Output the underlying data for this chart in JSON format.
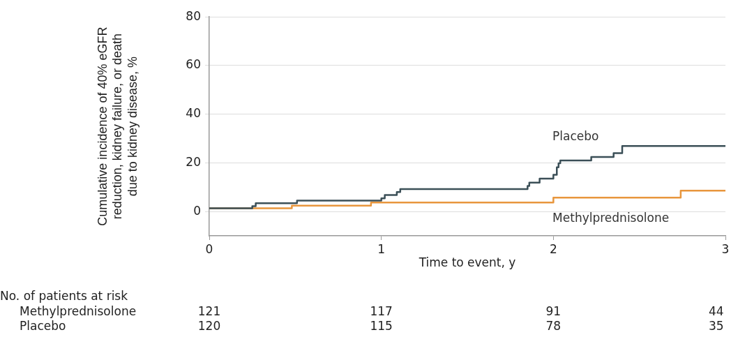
{
  "chart_data": {
    "type": "step",
    "ylabel": "Cumulative incidence of 40% eGFR\nreduction, kidney failure, or death\ndue to kidney disease, %",
    "xlabel": "Time to event, y",
    "xlim": [
      0,
      3
    ],
    "xticks": [
      0,
      1,
      2,
      3
    ],
    "ylim": [
      -10,
      80
    ],
    "yticks": [
      0,
      20,
      40,
      60,
      80
    ],
    "grid": "y",
    "legend": false,
    "marker": "none",
    "line_style": "solid",
    "series": [
      {
        "name": "Placebo",
        "color": "#3b4f57",
        "x": [
          0,
          0.25,
          0.27,
          0.51,
          1.0,
          1.02,
          1.09,
          1.11,
          1.85,
          1.86,
          1.92,
          2.0,
          2.02,
          2.03,
          2.04,
          2.22,
          2.35,
          2.4,
          3
        ],
        "values": [
          1.3,
          2.2,
          3.4,
          4.5,
          5.4,
          6.8,
          8.0,
          9.2,
          10.5,
          11.9,
          13.5,
          15.1,
          18.2,
          19.8,
          21,
          22.4,
          24,
          26.9,
          26.9
        ]
      },
      {
        "name": "Methylprednisolone",
        "color": "#e8963d",
        "x": [
          0,
          0.48,
          0.94,
          2.0,
          2.74,
          3
        ],
        "values": [
          1.3,
          2.4,
          3.7,
          5.7,
          8.6,
          8.6
        ]
      }
    ],
    "annotations": [
      "No. of patients at risk",
      "Methylprednisolone",
      "121",
      "117",
      "91",
      "44",
      "Placebo",
      "120",
      "115",
      "78",
      "35"
    ]
  }
}
